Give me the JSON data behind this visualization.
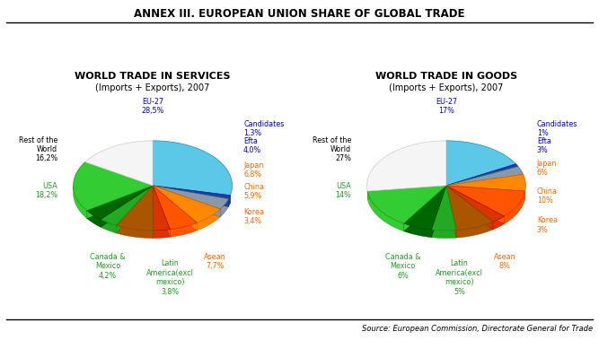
{
  "title": "ANNEX III. EUROPEAN UNION SHARE OF GLOBAL TRADE",
  "source": "Source: European Commission, Directorate General for Trade",
  "left_title1": "WORLD TRADE IN SERVICES",
  "left_title2": "(Imports + Exports), 2007",
  "right_title1": "WORLD TRADE IN GOODS",
  "right_title2": "(Imports + Exports), 2007",
  "services": {
    "values": [
      28.5,
      1.3,
      4.0,
      6.8,
      5.9,
      3.4,
      7.7,
      3.8,
      4.2,
      18.2,
      16.2
    ],
    "colors": [
      "#5BC8E8",
      "#1A3FAA",
      "#8899AA",
      "#FF8800",
      "#FF5500",
      "#DD3300",
      "#AA5500",
      "#22AA22",
      "#006600",
      "#33CC33",
      "#F5F5F5"
    ],
    "edge_colors": [
      "#2288BB",
      "#112288",
      "#556677",
      "#CC6600",
      "#CC3300",
      "#AA1100",
      "#884400",
      "#118811",
      "#004400",
      "#229911",
      "#CCCCCC"
    ],
    "label_colors": [
      "#0000CC",
      "#0000CC",
      "#0000CC",
      "#FF6600",
      "#FF6600",
      "#FF6600",
      "#FF6600",
      "#229922",
      "#229922",
      "#229922",
      "#000000"
    ],
    "labels": [
      "EU-27\n28,5%",
      "Candidates\n1,3%",
      "Efta\n4,0%",
      "Japan\n6,8%",
      "China\n5,9%",
      "Korea\n3,4%",
      "Asean\n7,7%",
      "Latin\nAmerica(excl\nmexico)\n3,8%",
      "Canada &\nMexico\n4,2%",
      "USA\n18,2%",
      "Rest of the\nWorld\n16,2%"
    ]
  },
  "goods": {
    "values": [
      17,
      1,
      3,
      6,
      10,
      3,
      8,
      5,
      6,
      14,
      27
    ],
    "colors": [
      "#5BC8E8",
      "#1A3FAA",
      "#8899AA",
      "#FF8800",
      "#FF5500",
      "#DD3300",
      "#AA5500",
      "#22AA22",
      "#006600",
      "#33CC33",
      "#F5F5F5"
    ],
    "edge_colors": [
      "#2288BB",
      "#112288",
      "#556677",
      "#CC6600",
      "#CC3300",
      "#AA1100",
      "#884400",
      "#118811",
      "#004400",
      "#229911",
      "#CCCCCC"
    ],
    "label_colors": [
      "#0000CC",
      "#0000CC",
      "#0000CC",
      "#FF6600",
      "#FF6600",
      "#FF6600",
      "#FF6600",
      "#229922",
      "#229922",
      "#229922",
      "#000000"
    ],
    "labels": [
      "EU-27\n17%",
      "Candidates\n1%",
      "Efta\n3%",
      "Japan\n6%",
      "China\n10%",
      "Korea\n3%",
      "Asean\n8%",
      "Latin\nAmerica(excl\nmexico)\n5%",
      "Canada &\nMexico\n6%",
      "USA\n14%",
      "Rest of the\nWorld\n27%"
    ]
  },
  "bg_color": "#FFFFFF"
}
